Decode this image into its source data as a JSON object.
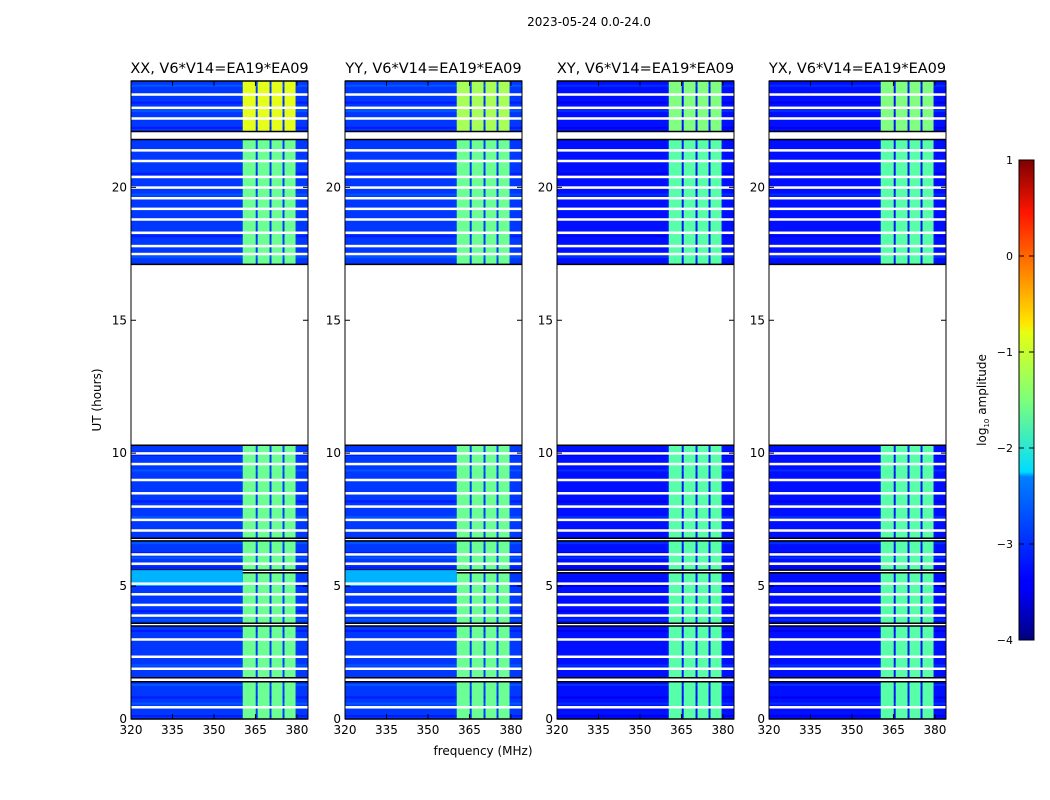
{
  "chart_data": {
    "type": "heatmap",
    "title": "2023-05-24 0.0-24.0",
    "xlabel": "frequency (MHz)",
    "ylabel": "UT (hours)",
    "xlim": [
      320,
      384
    ],
    "ylim": [
      0,
      24
    ],
    "xticks": [
      "320",
      "335",
      "350",
      "365",
      "380"
    ],
    "yticks": [
      "0",
      "5",
      "10",
      "15",
      "20"
    ],
    "colorbar": {
      "label_prefix": "log",
      "label_sub": "10",
      "label_suffix": " amplitude",
      "range": [
        -4,
        1
      ],
      "ticks": [
        "1",
        "0",
        "−1",
        "−2",
        "−3",
        "−4"
      ],
      "colormap": "jet"
    },
    "data_segments_ut": [
      [
        0.0,
        1.4
      ],
      [
        1.55,
        3.5
      ],
      [
        3.6,
        5.5
      ],
      [
        5.6,
        6.7
      ],
      [
        6.8,
        10.3
      ],
      [
        17.1,
        21.8
      ],
      [
        22.1,
        24.0
      ]
    ],
    "flagged_lines_ut": [
      0.45,
      1.9,
      2.35,
      3.0,
      3.9,
      4.3,
      4.7,
      5.1,
      5.85,
      6.2,
      7.1,
      7.5,
      8.0,
      8.5,
      9.0,
      9.6,
      10.0,
      17.5,
      17.8,
      18.3,
      18.8,
      19.2,
      19.6,
      20.0,
      20.4,
      21.0,
      21.4,
      22.6,
      23.0,
      23.5
    ],
    "rfi_bright_channels_mhz": [
      [
        360.4,
        365.1
      ],
      [
        365.8,
        370.1
      ],
      [
        370.8,
        374.8
      ],
      [
        375.5,
        379.5
      ]
    ],
    "panels": [
      {
        "title": "XX, V6*V14=EA19*EA09",
        "background_log_amp": -3.1,
        "channel_log_amp": -1.6,
        "top_channel_log_amp": -1.0,
        "bright_band_ut": [
          5.0,
          5.6
        ],
        "bright_band_log_amp": -2.5
      },
      {
        "title": "YY, V6*V14=EA19*EA09",
        "background_log_amp": -3.1,
        "channel_log_amp": -1.6,
        "top_channel_log_amp": -1.3,
        "bright_band_ut": [
          5.0,
          5.6
        ],
        "bright_band_log_amp": -2.5
      },
      {
        "title": "XY, V6*V14=EA19*EA09",
        "background_log_amp": -3.3,
        "channel_log_amp": -1.7,
        "top_channel_log_amp": -1.5,
        "bright_band_ut": null,
        "bright_band_log_amp": null
      },
      {
        "title": "YX, V6*V14=EA19*EA09",
        "background_log_amp": -3.3,
        "channel_log_amp": -1.7,
        "top_channel_log_amp": -1.5,
        "bright_band_ut": null,
        "bright_band_log_amp": null
      }
    ]
  }
}
